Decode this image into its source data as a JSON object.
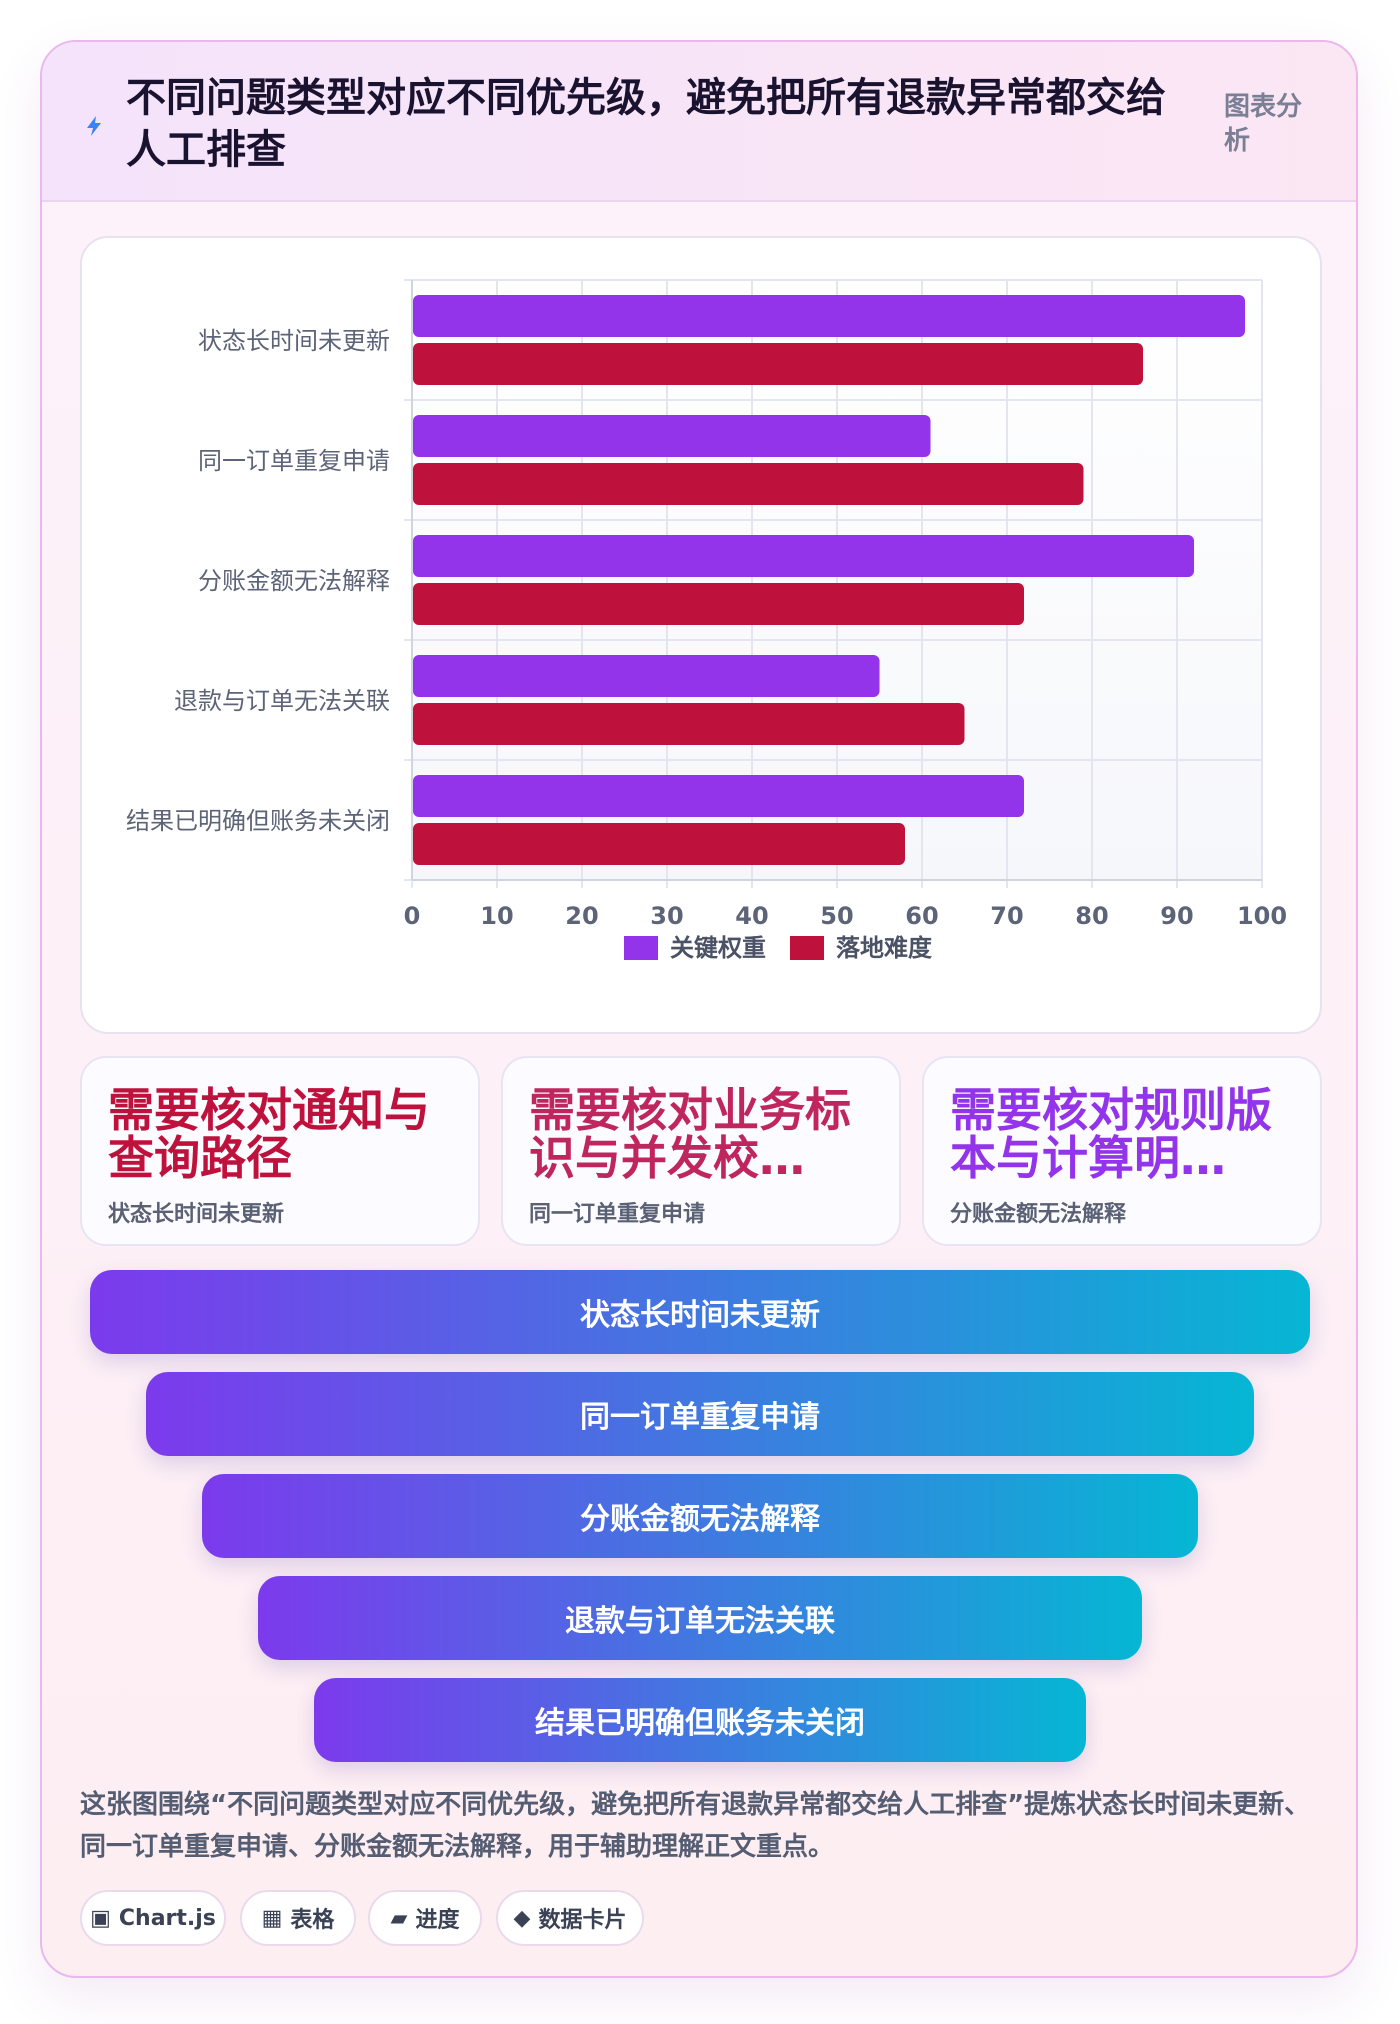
{
  "header": {
    "title": "不同问题类型对应不同优先级，避免把所有退款异常都交给人工排查",
    "tag": "图表分析"
  },
  "chart_data": {
    "type": "bar",
    "orientation": "horizontal",
    "categories": [
      "状态长时间未更新",
      "同一订单重复申请",
      "分账金额无法解释",
      "退款与订单无法关联",
      "结果已明确但账务未关闭"
    ],
    "series": [
      {
        "name": "关键权重",
        "values": [
          98,
          61,
          92,
          55,
          72
        ],
        "color": "#9333ea"
      },
      {
        "name": "落地难度",
        "values": [
          86,
          79,
          72,
          65,
          58
        ],
        "color": "#be123c"
      }
    ],
    "xlim": [
      0,
      100
    ],
    "xticks": [
      0,
      10,
      20,
      30,
      40,
      50,
      60,
      70,
      80,
      90,
      100
    ],
    "grid": true,
    "legend": "bottom"
  },
  "stats": [
    {
      "value": "需要核对通知与\n查询路径",
      "label": "状态长时间未更新",
      "color": "#be123c"
    },
    {
      "value": "需要核对业务标\n识与并发校…",
      "label": "同一订单重复申请",
      "color": "#c0265e"
    },
    {
      "value": "需要核对规则版\n本与计算明…",
      "label": "分账金额无法解释",
      "color": "#9333ea"
    }
  ],
  "funnel": [
    "状态长时间未更新",
    "同一订单重复申请",
    "分账金额无法解释",
    "退款与订单无法关联",
    "结果已明确但账务未关闭"
  ],
  "summary": "这张图围绕“不同问题类型对应不同优先级，避免把所有退款异常都交给人工排查”提炼状态长时间未更新、同一订单重复申请、分账金额无法解释，用于辅助理解正文重点。",
  "chips": [
    {
      "icon": "▣",
      "icon_name": "chart-icon",
      "label": "Chart.js"
    },
    {
      "icon": "▦",
      "icon_name": "table-icon",
      "label": "表格"
    },
    {
      "icon": "▰",
      "icon_name": "progress-icon",
      "label": "进度"
    },
    {
      "icon": "◆",
      "icon_name": "card-icon",
      "label": "数据卡片"
    }
  ]
}
